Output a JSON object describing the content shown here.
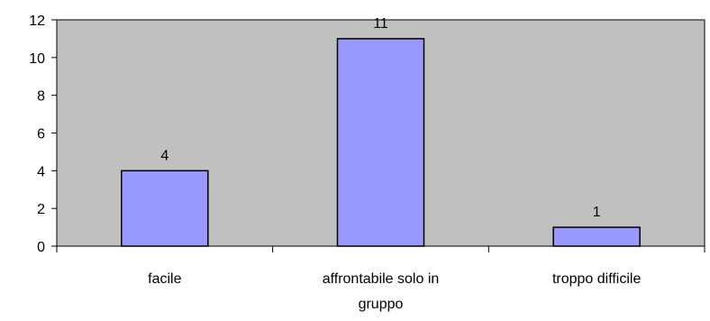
{
  "chart_data": {
    "type": "bar",
    "categories": [
      "facile",
      "affrontabile solo in gruppo",
      "troppo difficile"
    ],
    "category_lines": [
      [
        "facile"
      ],
      [
        "affrontabile solo in",
        "gruppo"
      ],
      [
        "troppo difficile"
      ]
    ],
    "values": [
      4,
      11,
      1
    ],
    "data_labels": [
      "4",
      "11",
      "1"
    ],
    "ylim": [
      0,
      12
    ],
    "yticks": [
      0,
      2,
      4,
      6,
      8,
      10,
      12
    ],
    "ytick_labels": [
      "0",
      "2",
      "4",
      "6",
      "8",
      "10",
      "12"
    ],
    "title": "",
    "xlabel": "",
    "ylabel": "",
    "grid": false,
    "legend": false,
    "colors": {
      "plot_background": "#c0c0c0",
      "bar_fill": "#9999ff",
      "bar_stroke": "#000000",
      "axis": "#000000"
    }
  }
}
